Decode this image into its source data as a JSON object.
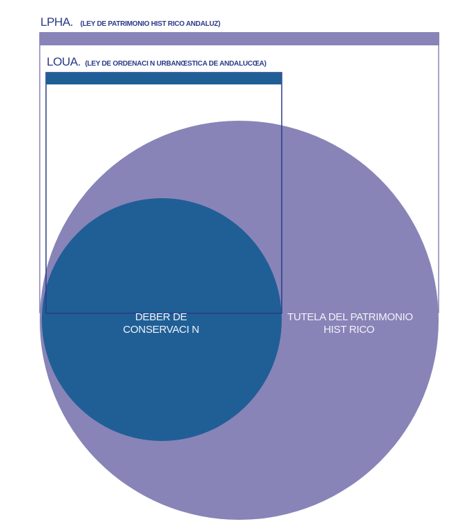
{
  "colors": {
    "lpha": "#8884b8",
    "loua": "#1f5f96",
    "label": "#2b3a87",
    "inner_text": "#f2f2f8",
    "background": "#ffffff"
  },
  "lpha": {
    "abbr": "LPHA.",
    "full": "(LEY DE PATRIMONIO HIST RICO  ANDALUZ)"
  },
  "loua": {
    "abbr": "LOUA.",
    "full": "(LEY DE ORDENACI N URBANŒSTICA DE ANDALUCŒA)"
  },
  "circles": {
    "inner_line1": "DEBER DE",
    "inner_line2": "CONSERVACI N",
    "outer_line1": "TUTELA DEL PATRIMONIO",
    "outer_line2": "HIST RICO"
  }
}
